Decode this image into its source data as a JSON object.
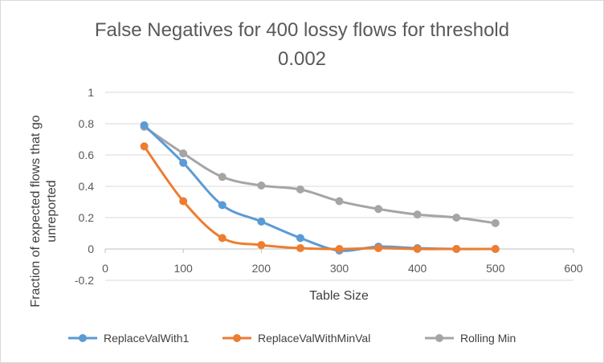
{
  "chart_data": {
    "type": "line",
    "title_lines": [
      "False Negatives for 400 lossy flows for threshold",
      "0.002"
    ],
    "xlabel": "Table Size",
    "ylabel_lines": [
      "Fraction of expected flows that go",
      "unreported"
    ],
    "xlim": [
      0,
      600
    ],
    "ylim": [
      -0.2,
      1
    ],
    "x_ticks": [
      "0",
      "100",
      "200",
      "300",
      "400",
      "500",
      "600"
    ],
    "y_ticks": [
      "-0.2",
      "0",
      "0.2",
      "0.4",
      "0.6",
      "0.8",
      "1"
    ],
    "grid": true,
    "legend_position": "bottom",
    "x": [
      50,
      100,
      150,
      200,
      250,
      300,
      350,
      400,
      450,
      500
    ],
    "series": [
      {
        "name": "ReplaceValWith1",
        "color": "#5B9BD5",
        "values": [
          0.79,
          0.55,
          0.28,
          0.175,
          0.07,
          -0.01,
          0.015,
          0.005,
          0,
          0
        ]
      },
      {
        "name": "ReplaceValWithMinVal",
        "color": "#ED7D31",
        "values": [
          0.655,
          0.305,
          0.07,
          0.025,
          0.005,
          0,
          0.005,
          0,
          0,
          0
        ]
      },
      {
        "name": "Rolling Min",
        "color": "#A5A5A5",
        "values": [
          0.78,
          0.61,
          0.46,
          0.405,
          0.38,
          0.305,
          0.255,
          0.22,
          0.2,
          0.165
        ]
      }
    ]
  }
}
